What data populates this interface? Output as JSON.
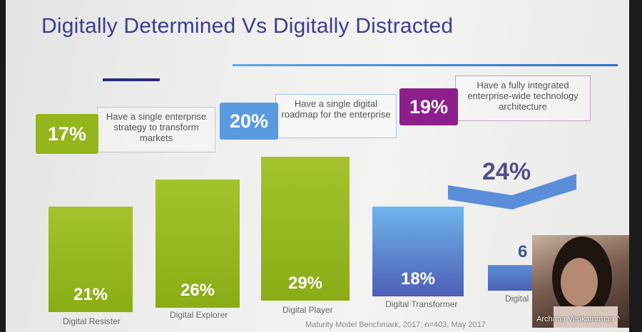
{
  "slide": {
    "title": "Digitally Determined Vs Digitally Distracted",
    "stats": [
      {
        "value": "17%",
        "text": "Have a single enterprise strategy to transform markets",
        "color": "#94b51c"
      },
      {
        "value": "20%",
        "text": "Have a single digital roadmap for the enterprise",
        "color": "#5b9ae0"
      },
      {
        "value": "19%",
        "text": "Have a fully integrated enterprise-wide technology architecture",
        "color": "#8d1f8d"
      }
    ],
    "bars": [
      {
        "value": "21%",
        "label": "Digital Resister"
      },
      {
        "value": "26%",
        "label": "Digital Explorer"
      },
      {
        "value": "29%",
        "label": "Digital Player"
      },
      {
        "value": "18%",
        "label": "Digital Transformer"
      },
      {
        "value": "6",
        "label": "Digital"
      }
    ],
    "chevron_value": "24%",
    "footnote": "Maturity Model Benchmark, 2017; n=403, May 2017"
  },
  "webcam": {
    "name": "Archana Venkatraman",
    "caret": "^"
  },
  "colors": {
    "green": "#94b51c",
    "blue": "#5b9ae0",
    "purple": "#8d1f8d",
    "navy": "#3a3d8f"
  }
}
